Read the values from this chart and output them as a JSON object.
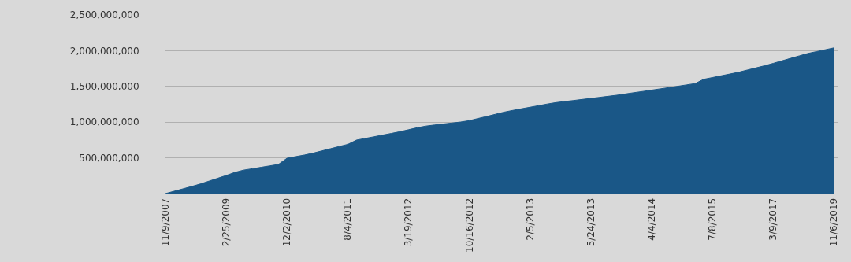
{
  "chart_data": {
    "type": "area",
    "categories": [
      "11/9/2007",
      null,
      null,
      null,
      null,
      null,
      null,
      "2/25/2009",
      null,
      null,
      null,
      null,
      null,
      null,
      "12/2/2010",
      null,
      null,
      null,
      null,
      null,
      null,
      "8/4/2011",
      null,
      null,
      null,
      null,
      null,
      null,
      "3/19/2012",
      null,
      null,
      null,
      null,
      null,
      null,
      "10/16/2012",
      null,
      null,
      null,
      null,
      null,
      null,
      "2/5/2013",
      null,
      null,
      null,
      null,
      null,
      null,
      "5/24/2013",
      null,
      null,
      null,
      null,
      null,
      null,
      "4/4/2014",
      null,
      null,
      null,
      null,
      null,
      null,
      "7/8/2015",
      null,
      null,
      null,
      null,
      null,
      null,
      "3/9/2017",
      null,
      null,
      null,
      null,
      null,
      null,
      "11/6/2019"
    ],
    "series": [
      {
        "color": "#1a5787",
        "values": [
          0,
          33000000,
          66000000,
          99000000,
          134000000,
          174000000,
          214000000,
          254000000,
          297000000,
          329000000,
          348000000,
          368000000,
          388000000,
          408000000,
          495000000,
          518000000,
          540000000,
          566000000,
          597000000,
          628000000,
          659000000,
          689000000,
          749000000,
          772000000,
          795000000,
          819000000,
          842000000,
          866000000,
          894000000,
          922000000,
          945000000,
          960000000,
          974000000,
          988000000,
          1002000000,
          1021000000,
          1051000000,
          1080000000,
          1110000000,
          1140000000,
          1164000000,
          1187000000,
          1209000000,
          1231000000,
          1254000000,
          1274000000,
          1289000000,
          1303000000,
          1318000000,
          1332000000,
          1347000000,
          1362000000,
          1377000000,
          1395000000,
          1413000000,
          1430000000,
          1448000000,
          1466000000,
          1484000000,
          1502000000,
          1521000000,
          1540000000,
          1600000000,
          1624000000,
          1649000000,
          1673000000,
          1698000000,
          1729000000,
          1759000000,
          1789000000,
          1823000000,
          1858000000,
          1893000000,
          1928000000,
          1962000000,
          1988000000,
          2014000000,
          2040000000
        ]
      }
    ],
    "ylim": [
      0,
      2500000000
    ],
    "yticks": [
      {
        "value": 0,
        "label": "-"
      },
      {
        "value": 500000000,
        "label": "500,000,000"
      },
      {
        "value": 1000000000,
        "label": "1,000,000,000"
      },
      {
        "value": 1500000000,
        "label": "1,500,000,000"
      },
      {
        "value": 2000000000,
        "label": "2,000,000,000"
      },
      {
        "value": 2500000000,
        "label": "2,500,000,000"
      }
    ],
    "grid": "y"
  }
}
